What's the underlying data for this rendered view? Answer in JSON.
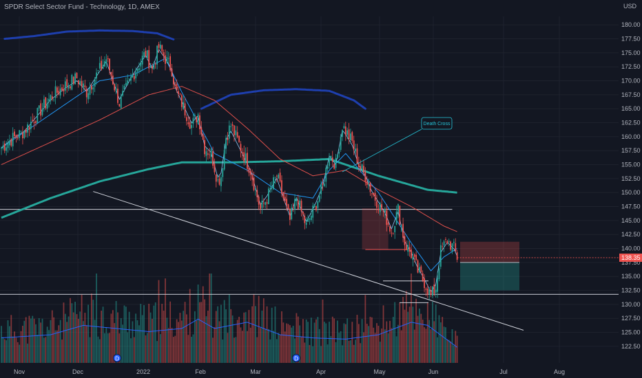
{
  "header": {
    "title": "SPDR Select Sector Fund - Technology, 1D, AMEX"
  },
  "chart_data": {
    "type": "candlestick",
    "title": "SPDR Select Sector Fund - Technology, 1D, AMEX",
    "currency": "USD",
    "y_ticks": [
      "180.00",
      "177.50",
      "175.00",
      "172.50",
      "170.00",
      "167.50",
      "165.00",
      "162.50",
      "160.00",
      "157.50",
      "155.00",
      "152.50",
      "150.00",
      "147.50",
      "145.00",
      "142.50",
      "140.00",
      "137.50",
      "135.00",
      "132.50",
      "130.00",
      "127.50",
      "125.00",
      "122.50"
    ],
    "ylim": [
      121.5,
      181.5
    ],
    "x_ticks": [
      "Nov",
      "Dec",
      "2022",
      "Feb",
      "Mar",
      "Apr",
      "May",
      "Jun",
      "Jul",
      "Aug"
    ],
    "last_price": "138.35",
    "annotations": [
      {
        "text": "Death Cross"
      }
    ],
    "events": [
      "D",
      "D"
    ],
    "price_anchors": [
      [
        0,
        158
      ],
      [
        6,
        159.5
      ],
      [
        14,
        161
      ],
      [
        22,
        164
      ],
      [
        30,
        167
      ],
      [
        38,
        169
      ],
      [
        46,
        170.5
      ],
      [
        52,
        168
      ],
      [
        58,
        171
      ],
      [
        64,
        174
      ],
      [
        68,
        170
      ],
      [
        72,
        166
      ],
      [
        80,
        171
      ],
      [
        88,
        175
      ],
      [
        92,
        172
      ],
      [
        96,
        176
      ],
      [
        100,
        174
      ],
      [
        104,
        172
      ],
      [
        106,
        168.5
      ],
      [
        110,
        166
      ],
      [
        116,
        162
      ],
      [
        120,
        164
      ],
      [
        124,
        158
      ],
      [
        128,
        157
      ],
      [
        132,
        152
      ],
      [
        134,
        153
      ],
      [
        137,
        160
      ],
      [
        140,
        162
      ],
      [
        146,
        158
      ],
      [
        152,
        154
      ],
      [
        158,
        147
      ],
      [
        162,
        149
      ],
      [
        168,
        153
      ],
      [
        172,
        149
      ],
      [
        176,
        145
      ],
      [
        180,
        149
      ],
      [
        186,
        144
      ],
      [
        192,
        148
      ],
      [
        196,
        151
      ],
      [
        200,
        157
      ],
      [
        204,
        155
      ],
      [
        208,
        162
      ],
      [
        210,
        161
      ],
      [
        214,
        159
      ],
      [
        218,
        155
      ],
      [
        222,
        153
      ],
      [
        226,
        150
      ],
      [
        230,
        148
      ],
      [
        234,
        146
      ],
      [
        238,
        143
      ],
      [
        242,
        147
      ],
      [
        246,
        141
      ],
      [
        250,
        139
      ],
      [
        254,
        136
      ],
      [
        258,
        134
      ],
      [
        262,
        131.5
      ],
      [
        265,
        133
      ],
      [
        268,
        139.5
      ],
      [
        272,
        141.5
      ],
      [
        276,
        140
      ],
      [
        278,
        138.4
      ]
    ],
    "volume_ylim": [
      0,
      100
    ],
    "volume_anchors": [
      [
        0,
        40
      ],
      [
        30,
        45
      ],
      [
        50,
        60
      ],
      [
        70,
        55
      ],
      [
        90,
        50
      ],
      [
        110,
        55
      ],
      [
        120,
        70
      ],
      [
        130,
        55
      ],
      [
        150,
        65
      ],
      [
        170,
        45
      ],
      [
        190,
        40
      ],
      [
        210,
        38
      ],
      [
        230,
        45
      ],
      [
        250,
        65
      ],
      [
        260,
        60
      ],
      [
        278,
        25
      ]
    ],
    "ma_anchors": {
      "ma200": [
        [
          0,
          145.5
        ],
        [
          30,
          149
        ],
        [
          60,
          152
        ],
        [
          90,
          154.2
        ],
        [
          110,
          155.4
        ],
        [
          140,
          155.4
        ],
        [
          170,
          155.6
        ],
        [
          200,
          156
        ],
        [
          230,
          153
        ],
        [
          260,
          150.5
        ],
        [
          278,
          150
        ]
      ],
      "ma50": [
        [
          0,
          155
        ],
        [
          30,
          159
        ],
        [
          60,
          163
        ],
        [
          90,
          167.5
        ],
        [
          110,
          169
        ],
        [
          130,
          166.5
        ],
        [
          150,
          161.5
        ],
        [
          170,
          156
        ],
        [
          190,
          153
        ],
        [
          210,
          154
        ],
        [
          230,
          150.5
        ],
        [
          250,
          147.5
        ],
        [
          270,
          144
        ],
        [
          278,
          143
        ]
      ],
      "ma20": [
        [
          0,
          158
        ],
        [
          30,
          164
        ],
        [
          60,
          170
        ],
        [
          80,
          171
        ],
        [
          100,
          174
        ],
        [
          110,
          168
        ],
        [
          130,
          157
        ],
        [
          150,
          154
        ],
        [
          170,
          150
        ],
        [
          190,
          149
        ],
        [
          200,
          154
        ],
        [
          210,
          157
        ],
        [
          230,
          150
        ],
        [
          250,
          141
        ],
        [
          262,
          136
        ],
        [
          270,
          138.5
        ],
        [
          278,
          140
        ]
      ]
    },
    "levels": {
      "resistance": 147.0,
      "support": 131.8,
      "upper_envelope": [
        [
          2,
          177.5
        ],
        [
          20,
          178
        ],
        [
          40,
          178.8
        ],
        [
          60,
          179
        ],
        [
          80,
          178.9
        ],
        [
          95,
          178.5
        ],
        [
          105,
          177.4
        ]
      ],
      "lower_envelope": [
        [
          122,
          165
        ],
        [
          140,
          167.5
        ],
        [
          160,
          168.3
        ],
        [
          180,
          168.5
        ],
        [
          200,
          168.2
        ],
        [
          215,
          166.5
        ],
        [
          222,
          165
        ]
      ],
      "trendline": [
        [
          56,
          150.2
        ],
        [
          278,
          129.2
        ]
      ],
      "zone_top": [
        220,
        236,
        147.2,
        139.8
      ],
      "boxes": [
        [
          278,
          310,
          141.2,
          137.5
        ],
        [
          278,
          310,
          137.5,
          132.5
        ]
      ]
    }
  }
}
